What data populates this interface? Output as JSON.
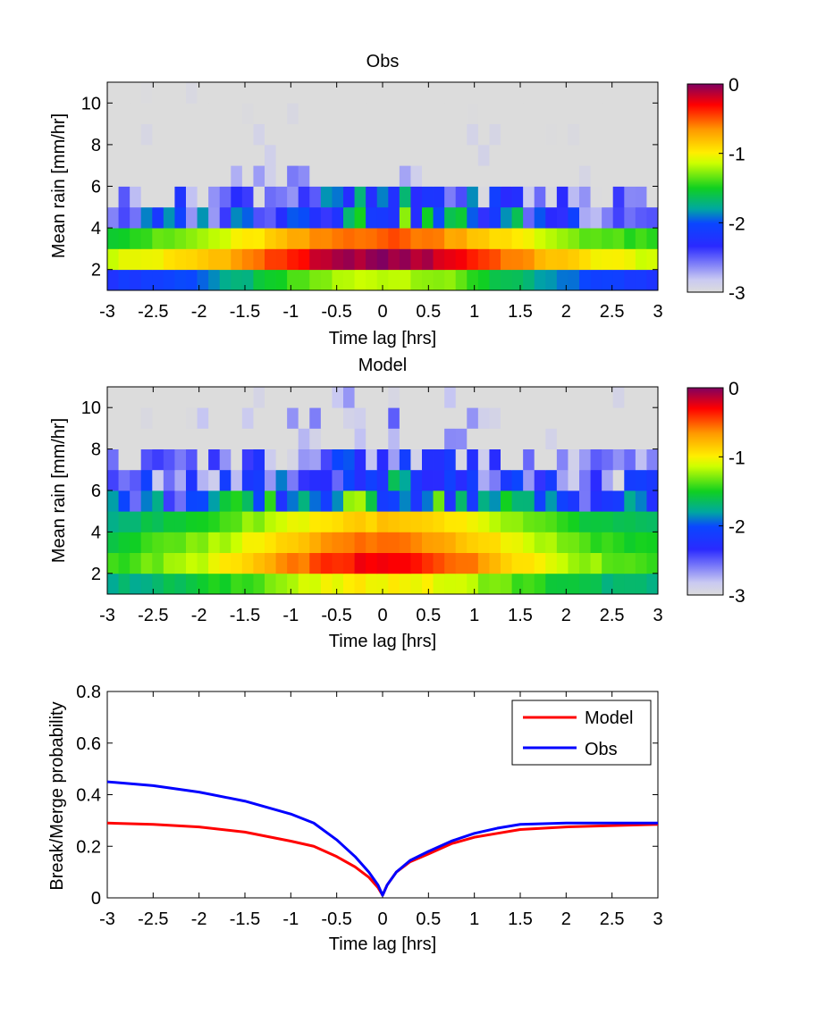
{
  "chart_data": [
    {
      "type": "heatmap",
      "title": "Obs",
      "xlabel": "Time lag [hrs]",
      "ylabel": "Mean rain [mm/hr]",
      "xlim": [
        -3,
        3
      ],
      "ylim": [
        1,
        11
      ],
      "xticks": [
        "-3",
        "-2.5",
        "-2",
        "-1.5",
        "-1",
        "-0.5",
        "0",
        "0.5",
        "1",
        "1.5",
        "2",
        "2.5",
        "3"
      ],
      "yticks": [
        "2",
        "4",
        "6",
        "8",
        "10"
      ],
      "colorbar": {
        "range": [
          -3,
          0
        ],
        "ticks": [
          "0",
          "-1",
          "-2",
          "-3"
        ]
      },
      "description_rows_y": [
        1.5,
        2.5,
        3.5,
        4.5,
        5.5,
        6.5,
        7.5,
        8.5,
        9.5,
        10.5
      ],
      "rows": [
        {
          "y": 1.5,
          "peak": -1.15,
          "edge": -2.25
        },
        {
          "y": 2.5,
          "peak": -0.05,
          "edge": -1.2
        },
        {
          "y": 3.5,
          "peak": -0.5,
          "edge": -1.55
        },
        {
          "y": 4.5,
          "peak": -1.8,
          "edge": -2.4
        },
        {
          "y": 5.5,
          "peak": -2.2,
          "edge": -2.9
        },
        {
          "y": 6.5,
          "peak": -2.5,
          "edge": -3.0
        },
        {
          "y": 7.5,
          "peak": -2.8,
          "edge": -3.0
        },
        {
          "y": 8.5,
          "peak": -2.9,
          "edge": -3.0
        },
        {
          "y": 9.5,
          "peak": -2.95,
          "edge": -3.0
        },
        {
          "y": 10.5,
          "peak": -2.97,
          "edge": -3.0
        }
      ]
    },
    {
      "type": "heatmap",
      "title": "Model",
      "xlabel": "Time lag [hrs]",
      "ylabel": "Mean rain [mm/hr]",
      "xlim": [
        -3,
        3
      ],
      "ylim": [
        1,
        11
      ],
      "xticks": [
        "-3",
        "-2.5",
        "-2",
        "-1.5",
        "-1",
        "-0.5",
        "0",
        "0.5",
        "1",
        "1.5",
        "2",
        "2.5",
        "3"
      ],
      "yticks": [
        "2",
        "4",
        "6",
        "8",
        "10"
      ],
      "colorbar": {
        "range": [
          -3,
          0
        ],
        "ticks": [
          "0",
          "-1",
          "-2",
          "-3"
        ]
      },
      "rows": [
        {
          "y": 1.5,
          "peak": -1.0,
          "edge": -1.8
        },
        {
          "y": 2.5,
          "peak": -0.3,
          "edge": -1.5
        },
        {
          "y": 3.5,
          "peak": -0.55,
          "edge": -1.6
        },
        {
          "y": 4.5,
          "peak": -0.85,
          "edge": -1.75
        },
        {
          "y": 5.5,
          "peak": -1.7,
          "edge": -2.2
        },
        {
          "y": 6.5,
          "peak": -2.05,
          "edge": -2.6
        },
        {
          "y": 7.5,
          "peak": -2.4,
          "edge": -2.9
        },
        {
          "y": 8.5,
          "peak": -2.5,
          "edge": -2.95
        },
        {
          "y": 9.5,
          "peak": -2.55,
          "edge": -3.0
        },
        {
          "y": 10.5,
          "peak": -2.7,
          "edge": -3.0
        }
      ]
    },
    {
      "type": "line",
      "title": "",
      "xlabel": "Time lag [hrs]",
      "ylabel": "Break/Merge probability",
      "xlim": [
        -3,
        3
      ],
      "ylim": [
        0,
        0.8
      ],
      "xticks": [
        "-3",
        "-2.5",
        "-2",
        "-1.5",
        "-1",
        "-0.5",
        "0",
        "0.5",
        "1",
        "1.5",
        "2",
        "2.5",
        "3"
      ],
      "yticks": [
        "0",
        "0.2",
        "0.4",
        "0.6",
        "0.8"
      ],
      "legend": "top-right",
      "x": [
        -3,
        -2.5,
        -2,
        -1.5,
        -1,
        -0.75,
        -0.5,
        -0.3,
        -0.15,
        -0.05,
        0,
        0.05,
        0.15,
        0.3,
        0.5,
        0.75,
        1,
        1.25,
        1.5,
        2,
        2.5,
        3
      ],
      "series": [
        {
          "name": "Model",
          "color": "#ff0000",
          "values": [
            0.29,
            0.285,
            0.275,
            0.255,
            0.22,
            0.2,
            0.16,
            0.12,
            0.08,
            0.04,
            0.01,
            0.05,
            0.1,
            0.14,
            0.17,
            0.21,
            0.235,
            0.25,
            0.265,
            0.275,
            0.28,
            0.285
          ]
        },
        {
          "name": "Obs",
          "color": "#0000ff",
          "values": [
            0.45,
            0.435,
            0.41,
            0.375,
            0.325,
            0.29,
            0.225,
            0.16,
            0.1,
            0.05,
            0.01,
            0.05,
            0.1,
            0.145,
            0.18,
            0.22,
            0.25,
            0.27,
            0.285,
            0.29,
            0.29,
            0.29
          ]
        }
      ]
    }
  ]
}
